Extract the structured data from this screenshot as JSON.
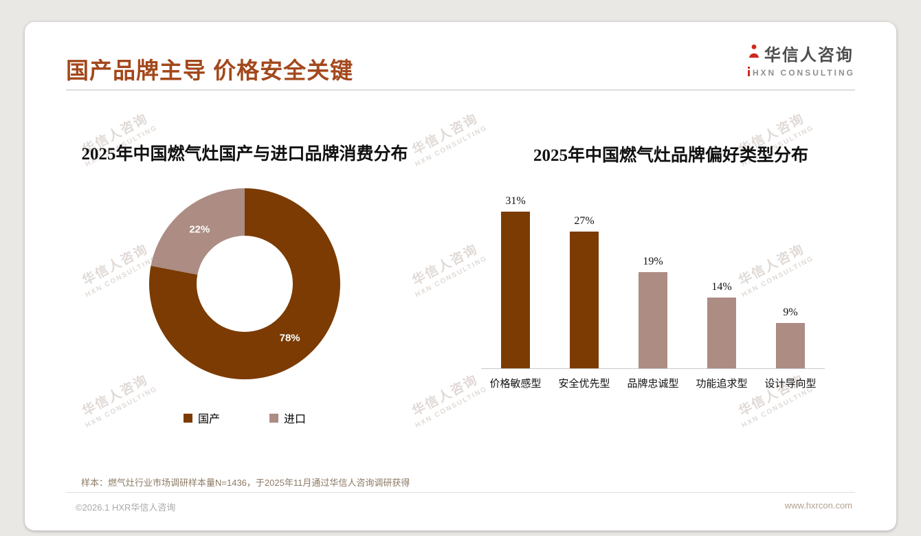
{
  "page": {
    "title": "国产品牌主导 价格安全关键",
    "logo": {
      "cn": "华信人咨询",
      "en": "HXN CONSULTING"
    },
    "watermark": {
      "line1": "华信人咨询",
      "line2": "HXN CONSULTING"
    },
    "footnote": "样本：燃气灶行业市场调研样本量N=1436，于2025年11月通过华信人咨询调研获得",
    "footer_left": "©2026.1 HXR华信人咨询",
    "footer_right": "www.hxrcon.com"
  },
  "colors": {
    "accent": "#a3481c",
    "dark_brown": "#7B3B02",
    "mauve": "#AC8C83",
    "logo_red": "#d0281e"
  },
  "chart_data": [
    {
      "type": "pie",
      "donut": true,
      "title": "2025年中国燃气灶国产与进口品牌消费分布",
      "labels": [
        "国产",
        "进口"
      ],
      "values": [
        78,
        22
      ],
      "value_labels": [
        "78%",
        "22%"
      ],
      "colors": [
        "#7B3B02",
        "#AC8C83"
      ],
      "legend_position": "bottom"
    },
    {
      "type": "bar",
      "title": "2025年中国燃气灶品牌偏好类型分布",
      "categories": [
        "价格敏感型",
        "安全优先型",
        "品牌忠诚型",
        "功能追求型",
        "设计导向型"
      ],
      "values": [
        31,
        27,
        19,
        14,
        9
      ],
      "value_labels": [
        "31%",
        "27%",
        "19%",
        "14%",
        "9%"
      ],
      "bar_colors": [
        "#7B3B02",
        "#7B3B02",
        "#AC8C83",
        "#AC8C83",
        "#AC8C83"
      ],
      "xlabel": "",
      "ylabel": "",
      "ylim": [
        0,
        31
      ],
      "grid": false,
      "legend_position": "none"
    }
  ]
}
